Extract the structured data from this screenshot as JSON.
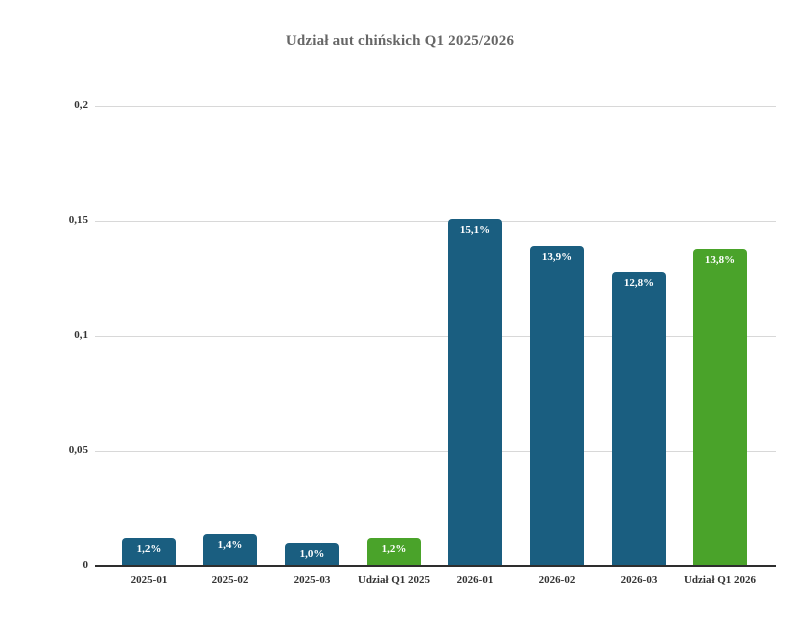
{
  "chart_data": {
    "type": "bar",
    "title": "Udział aut chińskich Q1 2025/2026",
    "categories": [
      "2025-01",
      "2025-02",
      "2025-03",
      "Udział Q1 2025",
      "2026-01",
      "2026-02",
      "2026-03",
      "Udział Q1 2026"
    ],
    "values": [
      0.012,
      0.014,
      0.01,
      0.012,
      0.151,
      0.139,
      0.128,
      0.138
    ],
    "value_labels": [
      "1,2%",
      "1,4%",
      "1,0%",
      "1,2%",
      "15,1%",
      "13,9%",
      "12,8%",
      "13,8%"
    ],
    "bar_colors": [
      "#1A5E80",
      "#1A5E80",
      "#1A5E80",
      "#4AA32A",
      "#1A5E80",
      "#1A5E80",
      "#1A5E80",
      "#4AA32A"
    ],
    "colors": {
      "monthly_bar": "#1A5E80",
      "quarter_share_bar": "#4AA32A",
      "title_text": "#666666",
      "tick_text": "#333333",
      "gridline": "#d8d8d8",
      "axis_line": "#2e2e2e",
      "bar_label_text": "#ffffff"
    },
    "y_tick_labels": [
      "0",
      "0,05",
      "0,1",
      "0,15",
      "0,2"
    ],
    "y_tick_values": [
      0,
      0.05,
      0.1,
      0.15,
      0.2
    ],
    "ylim": [
      0,
      0.2
    ],
    "xlabel": "",
    "ylabel": "",
    "grid": "horizontal",
    "legend": "none"
  }
}
